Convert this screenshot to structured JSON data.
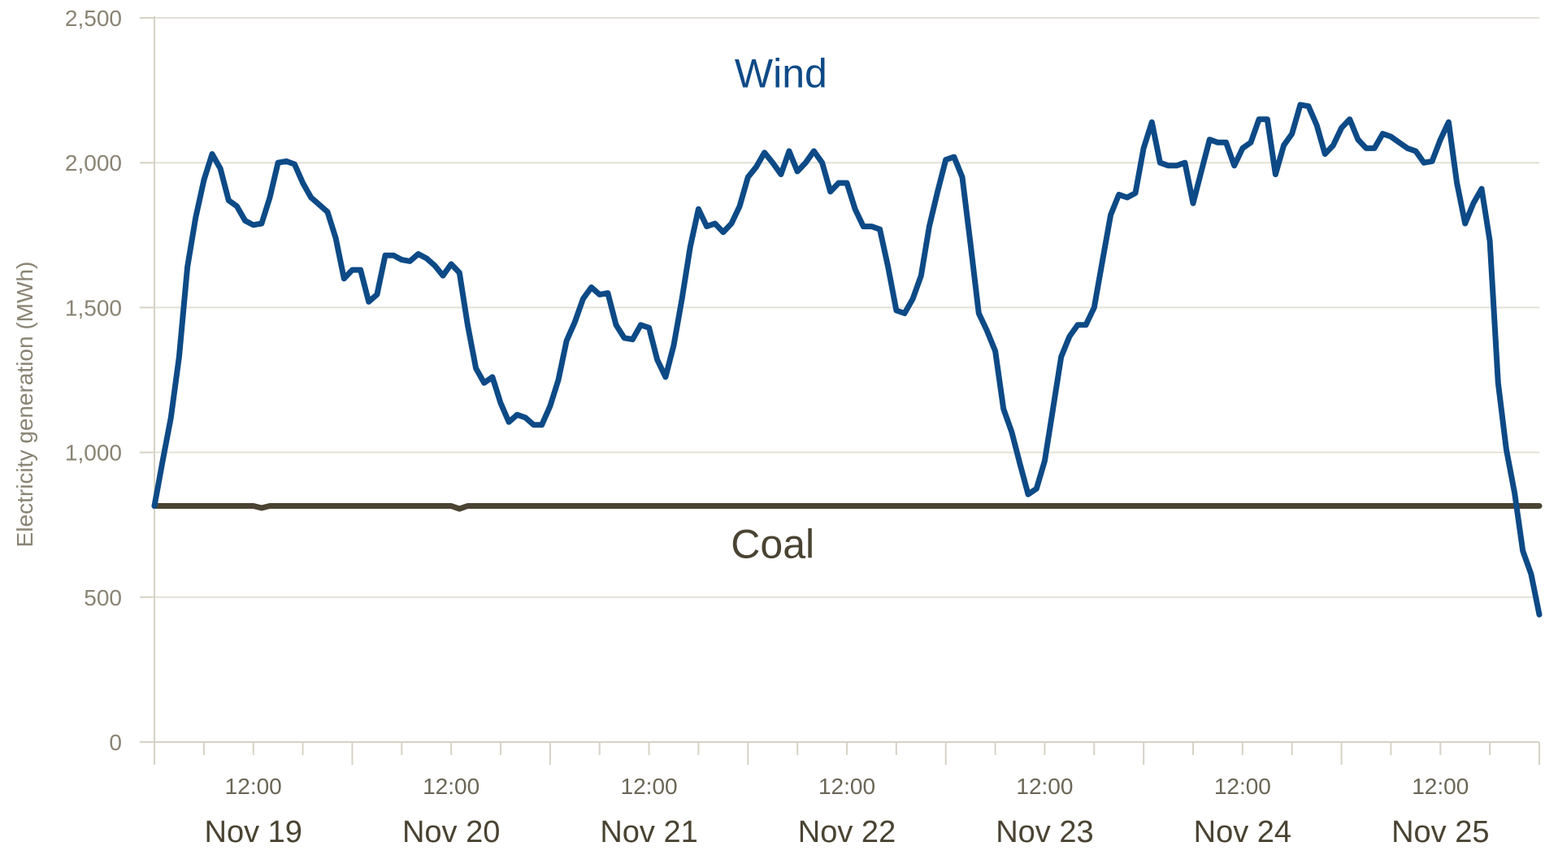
{
  "chart_data": {
    "type": "line",
    "title": "",
    "xlabel": "",
    "ylabel": "Electricity generation (MWh)",
    "ylim": [
      0,
      2500
    ],
    "y_ticks": [
      {
        "value": 0,
        "label": "0"
      },
      {
        "value": 500,
        "label": "500"
      },
      {
        "value": 1000,
        "label": "1,000"
      },
      {
        "value": 1500,
        "label": "1,500"
      },
      {
        "value": 2000,
        "label": "2,000"
      },
      {
        "value": 2500,
        "label": "2,500"
      }
    ],
    "xlim": [
      0,
      168
    ],
    "x_unit": "hours from Nov 19 00:00",
    "grid": true,
    "legend": "inline labels",
    "time_ticks": [
      {
        "x": 12,
        "label": "12:00"
      },
      {
        "x": 36,
        "label": "12:00"
      },
      {
        "x": 60,
        "label": "12:00"
      },
      {
        "x": 84,
        "label": "12:00"
      },
      {
        "x": 108,
        "label": "12:00"
      },
      {
        "x": 132,
        "label": "12:00"
      },
      {
        "x": 156,
        "label": "12:00"
      }
    ],
    "day_labels": [
      {
        "x": 12,
        "label": "Nov 19"
      },
      {
        "x": 36,
        "label": "Nov 20"
      },
      {
        "x": 60,
        "label": "Nov 21"
      },
      {
        "x": 84,
        "label": "Nov 22"
      },
      {
        "x": 108,
        "label": "Nov 23"
      },
      {
        "x": 132,
        "label": "Nov 24"
      },
      {
        "x": 156,
        "label": "Nov 25"
      }
    ],
    "series": [
      {
        "name": "Wind",
        "color": "#0d4a86",
        "label_pos": [
          76,
          2260
        ],
        "points": [
          [
            0,
            815
          ],
          [
            1,
            970
          ],
          [
            2,
            1120
          ],
          [
            3,
            1330
          ],
          [
            4,
            1640
          ],
          [
            5,
            1810
          ],
          [
            6,
            1940
          ],
          [
            7,
            2030
          ],
          [
            8,
            1980
          ],
          [
            9,
            1870
          ],
          [
            10,
            1850
          ],
          [
            11,
            1800
          ],
          [
            12,
            1785
          ],
          [
            13,
            1790
          ],
          [
            14,
            1880
          ],
          [
            15,
            2000
          ],
          [
            16,
            2005
          ],
          [
            17,
            1995
          ],
          [
            18,
            1930
          ],
          [
            19,
            1880
          ],
          [
            20,
            1855
          ],
          [
            21,
            1830
          ],
          [
            22,
            1740
          ],
          [
            23,
            1600
          ],
          [
            24,
            1630
          ],
          [
            25,
            1630
          ],
          [
            26,
            1520
          ],
          [
            27,
            1545
          ],
          [
            28,
            1680
          ],
          [
            29,
            1680
          ],
          [
            30,
            1665
          ],
          [
            31,
            1660
          ],
          [
            32,
            1685
          ],
          [
            33,
            1670
          ],
          [
            34,
            1645
          ],
          [
            35,
            1610
          ],
          [
            36,
            1650
          ],
          [
            37,
            1620
          ],
          [
            38,
            1440
          ],
          [
            39,
            1290
          ],
          [
            40,
            1240
          ],
          [
            41,
            1260
          ],
          [
            42,
            1170
          ],
          [
            43,
            1105
          ],
          [
            44,
            1130
          ],
          [
            45,
            1120
          ],
          [
            46,
            1095
          ],
          [
            47,
            1095
          ],
          [
            48,
            1160
          ],
          [
            49,
            1250
          ],
          [
            50,
            1385
          ],
          [
            51,
            1450
          ],
          [
            52,
            1530
          ],
          [
            53,
            1570
          ],
          [
            54,
            1545
          ],
          [
            55,
            1550
          ],
          [
            56,
            1440
          ],
          [
            57,
            1395
          ],
          [
            58,
            1390
          ],
          [
            59,
            1440
          ],
          [
            60,
            1430
          ],
          [
            61,
            1320
          ],
          [
            62,
            1260
          ],
          [
            63,
            1370
          ],
          [
            64,
            1530
          ],
          [
            65,
            1710
          ],
          [
            66,
            1840
          ],
          [
            67,
            1780
          ],
          [
            68,
            1790
          ],
          [
            69,
            1760
          ],
          [
            70,
            1790
          ],
          [
            71,
            1850
          ],
          [
            72,
            1950
          ],
          [
            73,
            1985
          ],
          [
            74,
            2035
          ],
          [
            75,
            2000
          ],
          [
            76,
            1960
          ],
          [
            77,
            2040
          ],
          [
            78,
            1970
          ],
          [
            79,
            2000
          ],
          [
            80,
            2040
          ],
          [
            81,
            2000
          ],
          [
            82,
            1900
          ],
          [
            83,
            1930
          ],
          [
            84,
            1930
          ],
          [
            85,
            1840
          ],
          [
            86,
            1780
          ],
          [
            87,
            1780
          ],
          [
            88,
            1770
          ],
          [
            89,
            1640
          ],
          [
            90,
            1490
          ],
          [
            91,
            1480
          ],
          [
            92,
            1530
          ],
          [
            93,
            1610
          ],
          [
            94,
            1780
          ],
          [
            95,
            1900
          ],
          [
            96,
            2010
          ],
          [
            97,
            2020
          ],
          [
            98,
            1950
          ],
          [
            99,
            1720
          ],
          [
            100,
            1480
          ],
          [
            101,
            1420
          ],
          [
            102,
            1350
          ],
          [
            103,
            1150
          ],
          [
            104,
            1070
          ],
          [
            105,
            960
          ],
          [
            106,
            855
          ],
          [
            107,
            875
          ],
          [
            108,
            970
          ],
          [
            109,
            1150
          ],
          [
            110,
            1330
          ],
          [
            111,
            1400
          ],
          [
            112,
            1440
          ],
          [
            113,
            1440
          ],
          [
            114,
            1500
          ],
          [
            115,
            1660
          ],
          [
            116,
            1820
          ],
          [
            117,
            1890
          ],
          [
            118,
            1880
          ],
          [
            119,
            1895
          ],
          [
            120,
            2050
          ],
          [
            121,
            2140
          ],
          [
            122,
            2000
          ],
          [
            123,
            1990
          ],
          [
            124,
            1990
          ],
          [
            125,
            2000
          ],
          [
            126,
            1860
          ],
          [
            127,
            1970
          ],
          [
            128,
            2080
          ],
          [
            129,
            2070
          ],
          [
            130,
            2070
          ],
          [
            131,
            1990
          ],
          [
            132,
            2050
          ],
          [
            133,
            2070
          ],
          [
            134,
            2150
          ],
          [
            135,
            2150
          ],
          [
            136,
            1960
          ],
          [
            137,
            2060
          ],
          [
            138,
            2100
          ],
          [
            139,
            2200
          ],
          [
            140,
            2195
          ],
          [
            141,
            2130
          ],
          [
            142,
            2030
          ],
          [
            143,
            2060
          ],
          [
            144,
            2120
          ],
          [
            145,
            2150
          ],
          [
            146,
            2080
          ],
          [
            147,
            2050
          ],
          [
            148,
            2050
          ],
          [
            149,
            2100
          ],
          [
            150,
            2090
          ],
          [
            151,
            2070
          ],
          [
            152,
            2050
          ],
          [
            153,
            2040
          ],
          [
            154,
            2000
          ],
          [
            155,
            2005
          ],
          [
            156,
            2080
          ],
          [
            157,
            2140
          ],
          [
            158,
            1930
          ],
          [
            159,
            1790
          ],
          [
            160,
            1860
          ],
          [
            161,
            1910
          ],
          [
            162,
            1730
          ],
          [
            163,
            1240
          ],
          [
            164,
            1010
          ],
          [
            165,
            860
          ],
          [
            166,
            660
          ],
          [
            167,
            580
          ],
          [
            168,
            440
          ]
        ]
      },
      {
        "name": "Coal",
        "color": "#4a4332",
        "label_pos": [
          75,
          635
        ],
        "points": [
          [
            0,
            815
          ],
          [
            12,
            815
          ],
          [
            13,
            808
          ],
          [
            14,
            815
          ],
          [
            36,
            815
          ],
          [
            37,
            805
          ],
          [
            38,
            815
          ],
          [
            168,
            815
          ]
        ]
      }
    ]
  }
}
